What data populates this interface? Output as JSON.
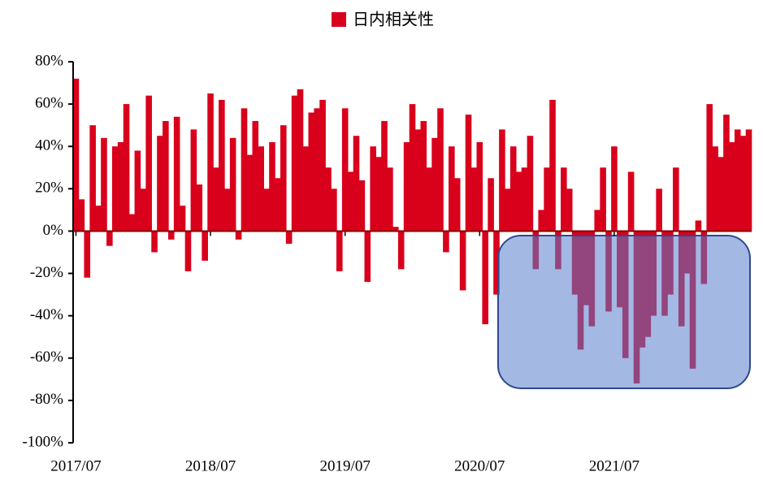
{
  "chart_data": {
    "type": "bar",
    "legend": "日内相关性",
    "color": "#d9001b",
    "categories": [
      "2017/07",
      null,
      null,
      null,
      null,
      null,
      null,
      null,
      null,
      null,
      null,
      null,
      null,
      null,
      null,
      null,
      null,
      null,
      null,
      null,
      null,
      null,
      null,
      null,
      "2018/07",
      null,
      null,
      null,
      null,
      null,
      null,
      null,
      null,
      null,
      null,
      null,
      null,
      null,
      null,
      null,
      null,
      null,
      null,
      null,
      null,
      null,
      null,
      null,
      "2019/07",
      null,
      null,
      null,
      null,
      null,
      null,
      null,
      null,
      null,
      null,
      null,
      null,
      null,
      null,
      null,
      null,
      null,
      null,
      null,
      null,
      null,
      null,
      null,
      "2020/07",
      null,
      null,
      null,
      null,
      null,
      null,
      null,
      null,
      null,
      null,
      null,
      null,
      null,
      null,
      null,
      null,
      null,
      null,
      null,
      null,
      null,
      null,
      null,
      "2021/07",
      null,
      null,
      null,
      null,
      null,
      null,
      null,
      null,
      null,
      null,
      null,
      null,
      null,
      null,
      null,
      null,
      null,
      null,
      null,
      null,
      null,
      null,
      null,
      null
    ],
    "values": [
      72,
      15,
      -22,
      50,
      12,
      44,
      -7,
      40,
      42,
      60,
      8,
      38,
      20,
      64,
      -10,
      45,
      52,
      -4,
      54,
      12,
      -19,
      48,
      22,
      -14,
      65,
      30,
      62,
      20,
      44,
      -4,
      58,
      36,
      52,
      40,
      20,
      42,
      25,
      50,
      -6,
      64,
      67,
      40,
      56,
      58,
      62,
      30,
      20,
      -19,
      58,
      28,
      45,
      24,
      -24,
      40,
      35,
      52,
      30,
      2,
      -18,
      42,
      60,
      48,
      52,
      30,
      44,
      58,
      -10,
      40,
      25,
      -28,
      55,
      30,
      42,
      -44,
      25,
      -30,
      48,
      20,
      40,
      28,
      30,
      45,
      -18,
      10,
      30,
      62,
      -18,
      30,
      20,
      -30,
      -56,
      -35,
      -45,
      10,
      30,
      -38,
      40,
      -36,
      -60,
      28,
      -72,
      -55,
      -50,
      -40,
      20,
      -40,
      -30,
      30,
      -45,
      -20,
      -65,
      5,
      -25,
      60,
      40,
      35,
      55,
      42,
      48,
      45,
      48
    ],
    "ylim": [
      -100,
      80
    ],
    "yticks": [
      {
        "value": -100,
        "label": "-100%"
      },
      {
        "value": -80,
        "label": "-80%"
      },
      {
        "value": -60,
        "label": "-60%"
      },
      {
        "value": -40,
        "label": "-40%"
      },
      {
        "value": -20,
        "label": "-20%"
      },
      {
        "value": 0,
        "label": "0%"
      },
      {
        "value": 20,
        "label": "20%"
      },
      {
        "value": 40,
        "label": "40%"
      },
      {
        "value": 60,
        "label": "60%"
      },
      {
        "value": 80,
        "label": "80%"
      }
    ]
  }
}
